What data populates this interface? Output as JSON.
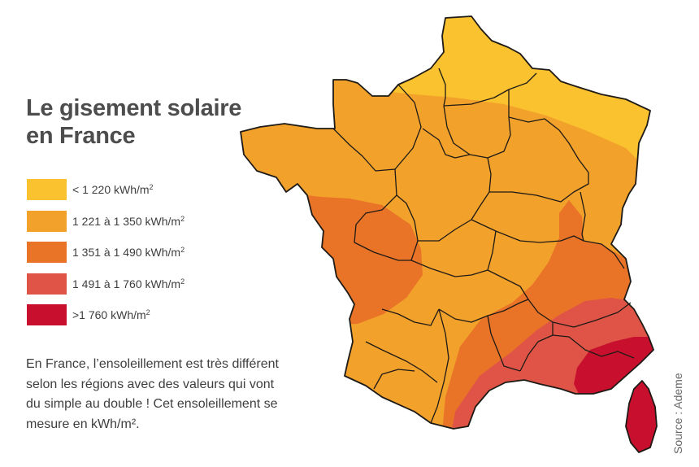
{
  "title": {
    "line1": "Le gisement solaire",
    "line2": "en France"
  },
  "legend": [
    {
      "label": "< 1 220 kWh/m",
      "sup": "2",
      "color": "#f9c22e"
    },
    {
      "label": "1 221 à 1 350 kWh/m",
      "sup": "2",
      "color": "#f2a12b"
    },
    {
      "label": "1 351 à 1 490 kWh/m",
      "sup": "2",
      "color": "#e97427"
    },
    {
      "label": "1 491 à 1 760 kWh/m",
      "sup": "2",
      "color": "#df5446"
    },
    {
      "label": ">1 760 kWh/m",
      "sup": "2",
      "color": "#c8102e"
    }
  ],
  "description": {
    "line1": "En France, l’ensoleillement est très différent",
    "line2": "selon les régions avec des valeurs qui vont",
    "line3": "du simple au double ! Cet ensoleillement se",
    "line4": "mesure en kWh/m²."
  },
  "source": "Source : Ademe",
  "map": {
    "border_color": "#1e1a16"
  }
}
